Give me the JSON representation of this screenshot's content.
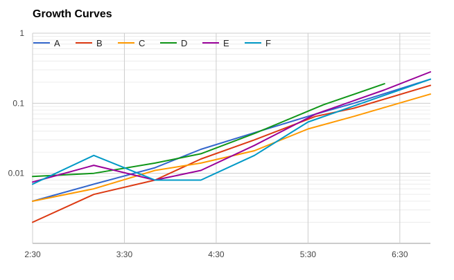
{
  "chart_data": {
    "type": "line",
    "title": "Growth Curves",
    "xlabel": "",
    "ylabel": "",
    "y_scale": "log",
    "ylim": [
      0.001,
      1
    ],
    "xlim": [
      "2:30",
      "6:50"
    ],
    "x_ticks": [
      "2:30",
      "3:30",
      "4:30",
      "5:30",
      "6:30"
    ],
    "y_ticks": [
      "0.01",
      "0.1",
      "1"
    ],
    "grid": true,
    "legend_position": "top-left",
    "series": [
      {
        "name": "A",
        "color": "#3366cc",
        "x": [
          "2:30",
          "3:10",
          "3:50",
          "4:20",
          "4:55",
          "5:35",
          "6:00",
          "6:50"
        ],
        "y": [
          0.004,
          0.007,
          0.012,
          0.022,
          0.038,
          0.07,
          0.1,
          0.22
        ]
      },
      {
        "name": "B",
        "color": "#dc3912",
        "x": [
          "2:30",
          "3:10",
          "3:50",
          "4:20",
          "4:55",
          "5:35",
          "6:00",
          "6:50"
        ],
        "y": [
          0.002,
          0.005,
          0.008,
          0.016,
          0.03,
          0.065,
          0.085,
          0.18
        ]
      },
      {
        "name": "C",
        "color": "#ff9900",
        "x": [
          "2:30",
          "3:10",
          "3:50",
          "4:20",
          "4:55",
          "5:30",
          "6:00",
          "6:50"
        ],
        "y": [
          0.004,
          0.006,
          0.011,
          0.014,
          0.021,
          0.043,
          0.065,
          0.135
        ]
      },
      {
        "name": "D",
        "color": "#109618",
        "x": [
          "2:30",
          "3:10",
          "3:50",
          "4:20",
          "4:55",
          "5:40",
          "6:20"
        ],
        "y": [
          0.009,
          0.01,
          0.014,
          0.019,
          0.037,
          0.095,
          0.19
        ]
      },
      {
        "name": "E",
        "color": "#990099",
        "x": [
          "2:30",
          "3:10",
          "3:50",
          "4:20",
          "4:55",
          "5:35",
          "6:20",
          "6:50"
        ],
        "y": [
          0.0075,
          0.013,
          0.008,
          0.011,
          0.025,
          0.07,
          0.155,
          0.28
        ]
      },
      {
        "name": "F",
        "color": "#0099c6",
        "x": [
          "2:30",
          "3:10",
          "3:50",
          "4:20",
          "4:55",
          "5:30",
          "6:50"
        ],
        "y": [
          0.007,
          0.018,
          0.008,
          0.008,
          0.018,
          0.054,
          0.22
        ]
      }
    ]
  }
}
